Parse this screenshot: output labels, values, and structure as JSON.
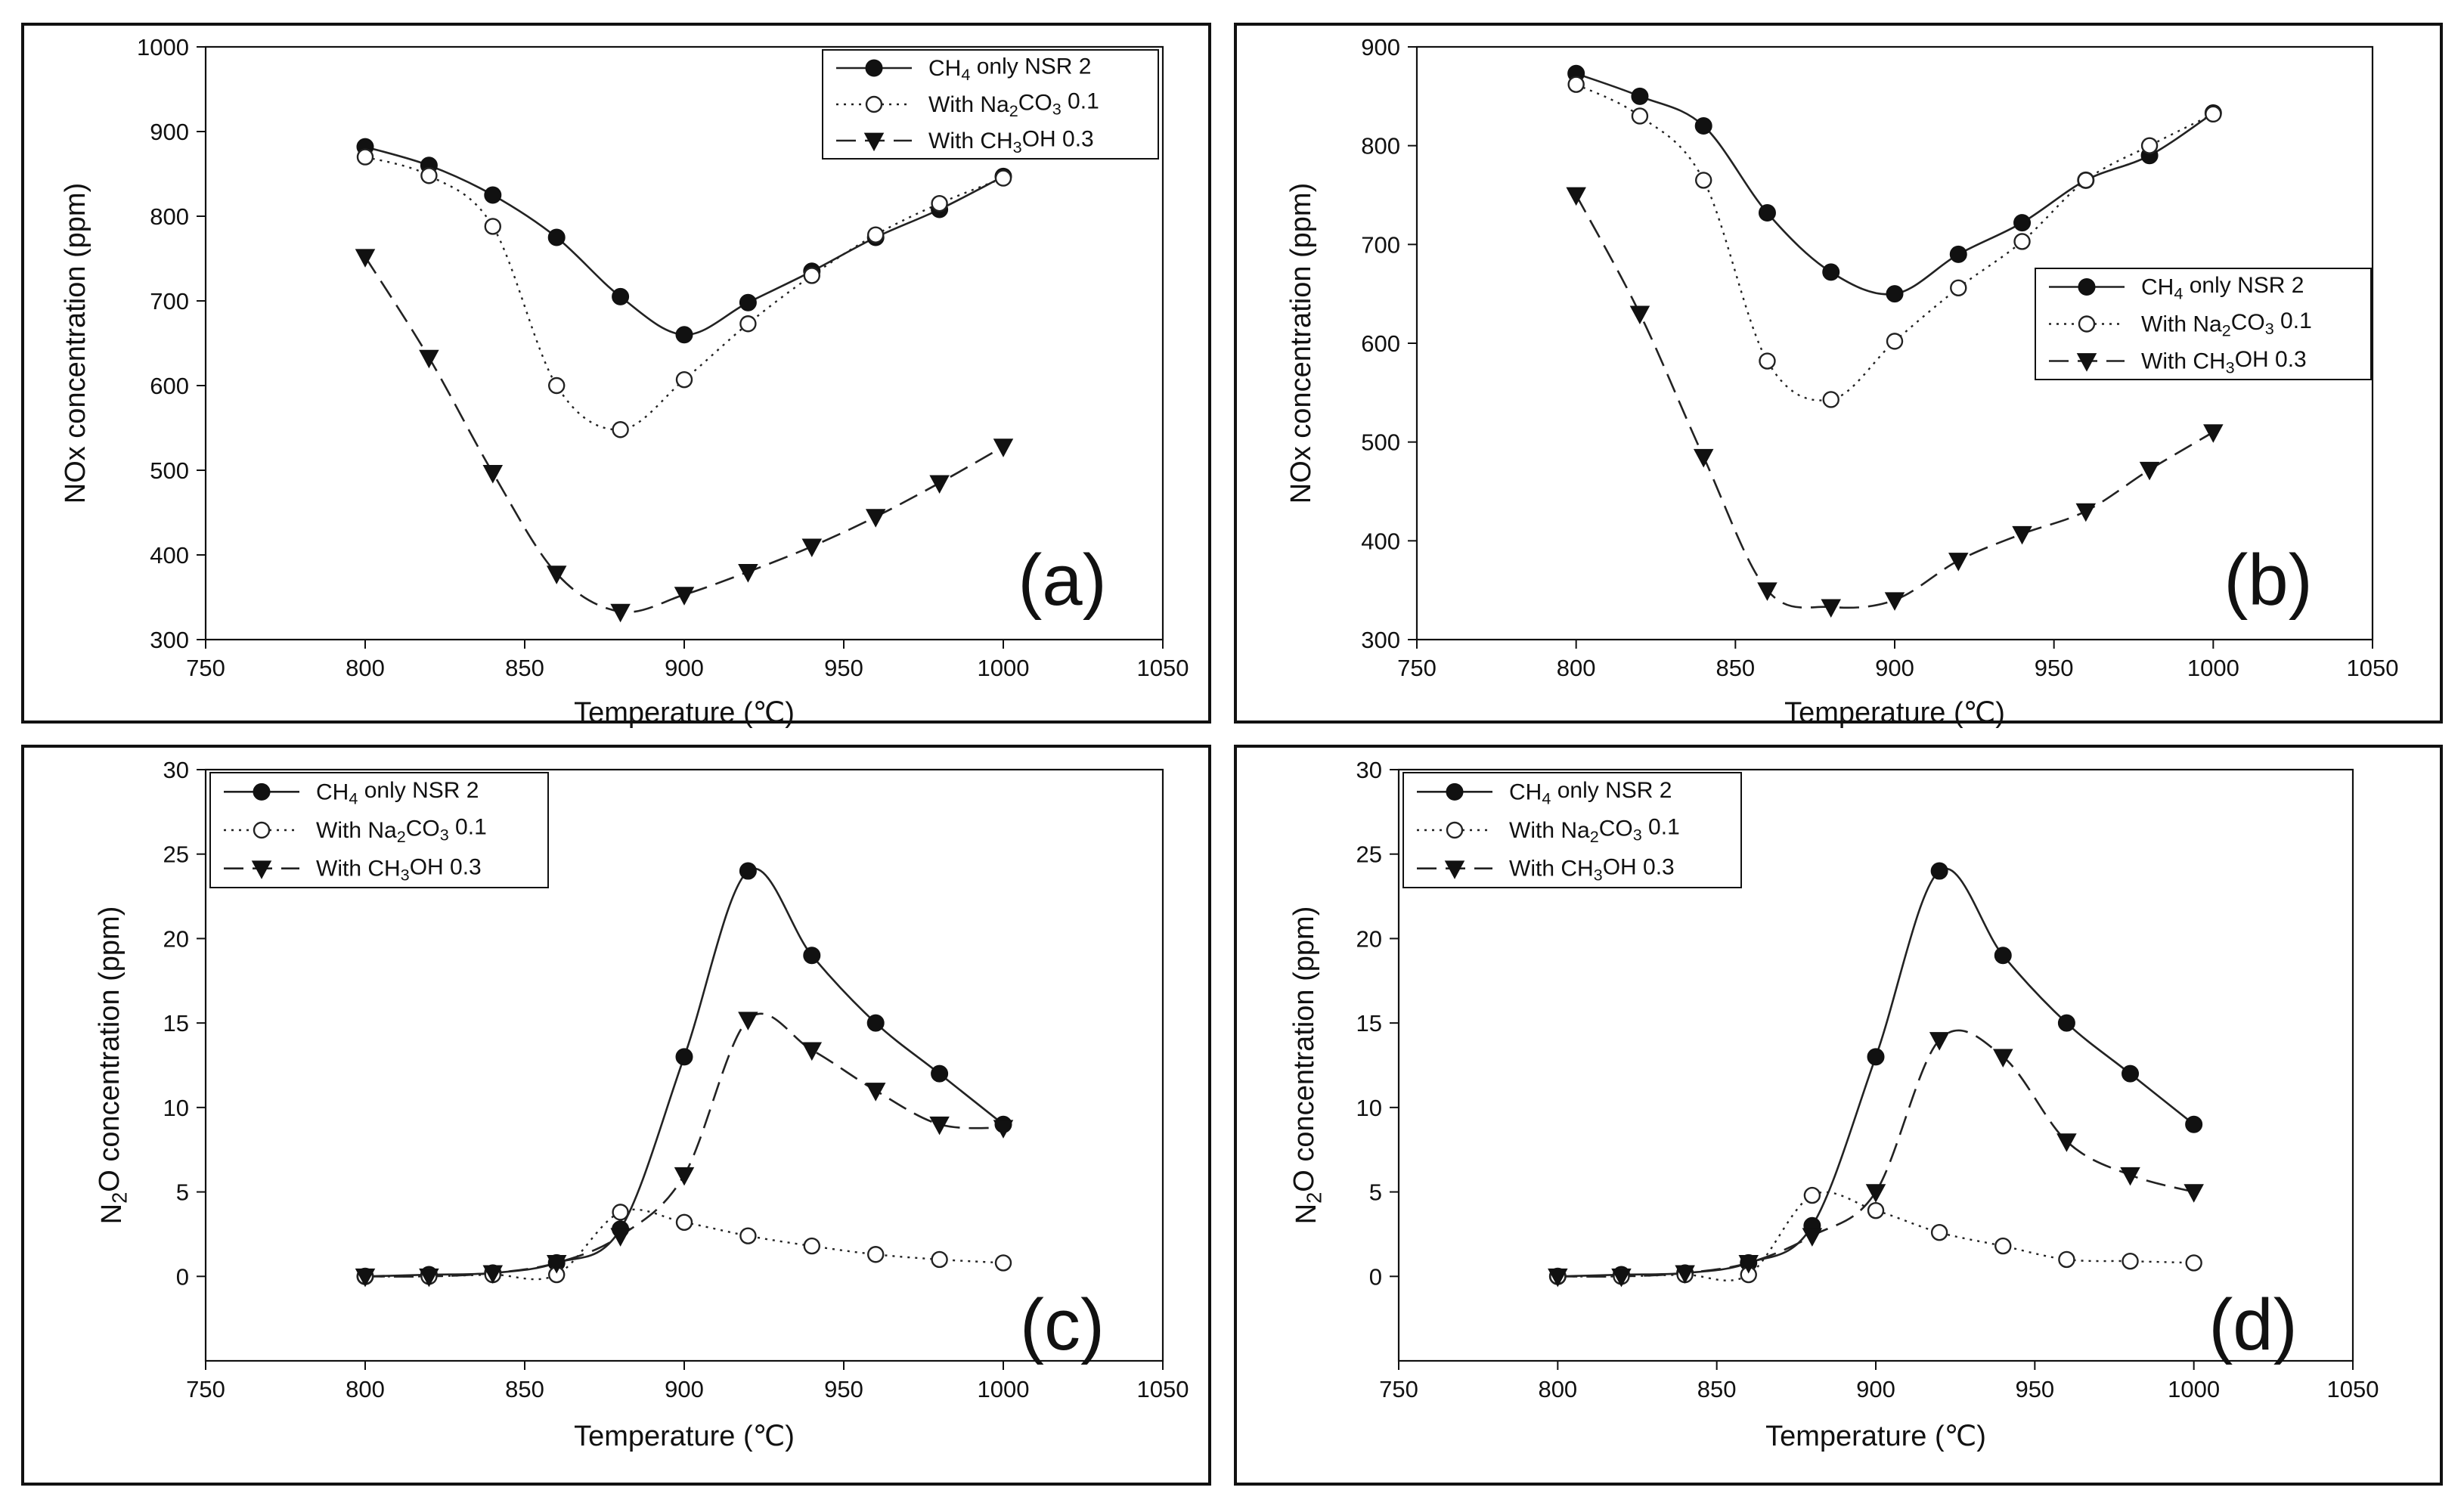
{
  "chart_data": [
    {
      "type": "line",
      "panel": "(a)",
      "title": "",
      "xlabel": "Temperature (℃)",
      "ylabel": "NOx concentration (ppm)",
      "xlim": [
        750,
        1050
      ],
      "ylim": [
        300,
        1000
      ],
      "xticks": [
        750,
        800,
        850,
        900,
        950,
        1000,
        1050
      ],
      "yticks": [
        300,
        400,
        500,
        600,
        700,
        800,
        900,
        1000
      ],
      "x": [
        800,
        820,
        840,
        860,
        880,
        900,
        920,
        940,
        960,
        980,
        1000
      ],
      "legend_position": "top-right",
      "series": [
        {
          "name": "CH4 only NSR 2",
          "name_main": "CH",
          "name_sub": "4",
          "name_rest": " only NSR 2",
          "marker": "filled-circle",
          "dash": "solid",
          "values": [
            882,
            860,
            825,
            775,
            705,
            660,
            698,
            735,
            775,
            808,
            847
          ]
        },
        {
          "name": "With Na2CO3 0.1",
          "name_main": "With Na",
          "name_sub": "2",
          "name_rest": "CO",
          "name_sub2": "3",
          "name_tail": " 0.1",
          "marker": "open-circle",
          "dash": "dotted",
          "values": [
            870,
            848,
            788,
            600,
            548,
            607,
            673,
            730,
            778,
            815,
            845
          ]
        },
        {
          "name": "With CH3OH 0.3",
          "name_main": "With CH",
          "name_sub": "3",
          "name_rest": "OH 0.3",
          "marker": "filled-triangle-down",
          "dash": "dashed",
          "values": [
            752,
            633,
            497,
            378,
            333,
            353,
            380,
            410,
            445,
            485,
            528
          ]
        }
      ]
    },
    {
      "type": "line",
      "panel": "(b)",
      "title": "",
      "xlabel": "Temperature (℃)",
      "ylabel": "NOx concentration (ppm)",
      "xlim": [
        750,
        1050
      ],
      "ylim": [
        300,
        900
      ],
      "xticks": [
        750,
        800,
        850,
        900,
        950,
        1000,
        1050
      ],
      "yticks": [
        300,
        400,
        500,
        600,
        700,
        800,
        900
      ],
      "x": [
        800,
        820,
        840,
        860,
        880,
        900,
        920,
        940,
        960,
        980,
        1000
      ],
      "legend_position": "middle-right",
      "series": [
        {
          "name": "CH4 only NSR 2",
          "name_main": "CH",
          "name_sub": "4",
          "name_rest": " only NSR 2",
          "marker": "filled-circle",
          "dash": "solid",
          "values": [
            873,
            850,
            820,
            732,
            672,
            650,
            690,
            722,
            765,
            790,
            833
          ]
        },
        {
          "name": "With Na2CO3 0.1",
          "name_main": "With Na",
          "name_sub": "2",
          "name_rest": "CO",
          "name_sub2": "3",
          "name_tail": " 0.1",
          "marker": "open-circle",
          "dash": "dotted",
          "values": [
            862,
            830,
            765,
            582,
            543,
            602,
            656,
            703,
            765,
            800,
            832
          ]
        },
        {
          "name": "With CH3OH 0.3",
          "name_main": "With CH",
          "name_sub": "3",
          "name_rest": "OH 0.3",
          "marker": "filled-triangle-down",
          "dash": "dashed",
          "values": [
            750,
            630,
            485,
            350,
            333,
            340,
            380,
            407,
            430,
            472,
            510
          ]
        }
      ]
    },
    {
      "type": "line",
      "panel": "(c)",
      "title": "",
      "xlabel": "Temperature (℃)",
      "ylabel": "N2O concentration (ppm)",
      "ylabel_main": "N",
      "ylabel_sub": "2",
      "ylabel_rest": "O concentration (ppm)",
      "xlim": [
        750,
        1050
      ],
      "ylim": [
        -5,
        30
      ],
      "xticks": [
        750,
        800,
        850,
        900,
        950,
        1000,
        1050
      ],
      "yticks": [
        0,
        5,
        10,
        15,
        20,
        25,
        30
      ],
      "x": [
        800,
        820,
        840,
        860,
        880,
        900,
        920,
        940,
        960,
        980,
        1000
      ],
      "legend_position": "top-left",
      "series": [
        {
          "name": "CH4 only NSR 2",
          "name_main": "CH",
          "name_sub": "4",
          "name_rest": " only NSR 2",
          "marker": "filled-circle",
          "dash": "solid",
          "values": [
            0,
            0.1,
            0.2,
            0.8,
            2.8,
            13,
            24,
            19,
            15,
            12,
            9
          ]
        },
        {
          "name": "With Na2CO3 0.1",
          "name_main": "With Na",
          "name_sub": "2",
          "name_rest": "CO",
          "name_sub2": "3",
          "name_tail": " 0.1",
          "marker": "open-circle",
          "dash": "dotted",
          "values": [
            0,
            0,
            0.1,
            0.1,
            3.8,
            3.2,
            2.4,
            1.8,
            1.3,
            1.0,
            0.8
          ]
        },
        {
          "name": "With CH3OH 0.3",
          "name_main": "With CH",
          "name_sub": "3",
          "name_rest": "OH 0.3",
          "marker": "filled-triangle-down",
          "dash": "dashed",
          "values": [
            0,
            0,
            0.2,
            0.8,
            2.4,
            6,
            15.2,
            13.4,
            11,
            9,
            8.8
          ]
        }
      ]
    },
    {
      "type": "line",
      "panel": "(d)",
      "title": "",
      "xlabel": "Temperature (℃)",
      "ylabel": "N2O concentration (ppm)",
      "ylabel_main": "N",
      "ylabel_sub": "2",
      "ylabel_rest": "O concentration (ppm)",
      "xlim": [
        750,
        1050
      ],
      "ylim": [
        -5,
        30
      ],
      "xticks": [
        750,
        800,
        850,
        900,
        950,
        1000,
        1050
      ],
      "yticks": [
        0,
        5,
        10,
        15,
        20,
        25,
        30
      ],
      "x": [
        800,
        820,
        840,
        860,
        880,
        900,
        920,
        940,
        960,
        980,
        1000
      ],
      "legend_position": "top-left",
      "series": [
        {
          "name": "CH4 only NSR 2",
          "name_main": "CH",
          "name_sub": "4",
          "name_rest": " only NSR 2",
          "marker": "filled-circle",
          "dash": "solid",
          "values": [
            0,
            0.1,
            0.2,
            0.8,
            3,
            13,
            24,
            19,
            15,
            12,
            9
          ]
        },
        {
          "name": "With Na2CO3 0.1",
          "name_main": "With Na",
          "name_sub": "2",
          "name_rest": "CO",
          "name_sub2": "3",
          "name_tail": " 0.1",
          "marker": "open-circle",
          "dash": "dotted",
          "values": [
            0,
            0,
            0.1,
            0.1,
            4.8,
            3.9,
            2.6,
            1.8,
            1.0,
            0.9,
            0.8
          ]
        },
        {
          "name": "With CH3OH 0.3",
          "name_main": "With CH",
          "name_sub": "3",
          "name_rest": "OH 0.3",
          "marker": "filled-triangle-down",
          "dash": "dashed",
          "values": [
            0,
            0,
            0.2,
            0.8,
            2.4,
            5,
            14,
            13,
            8,
            6,
            5
          ]
        }
      ]
    }
  ]
}
